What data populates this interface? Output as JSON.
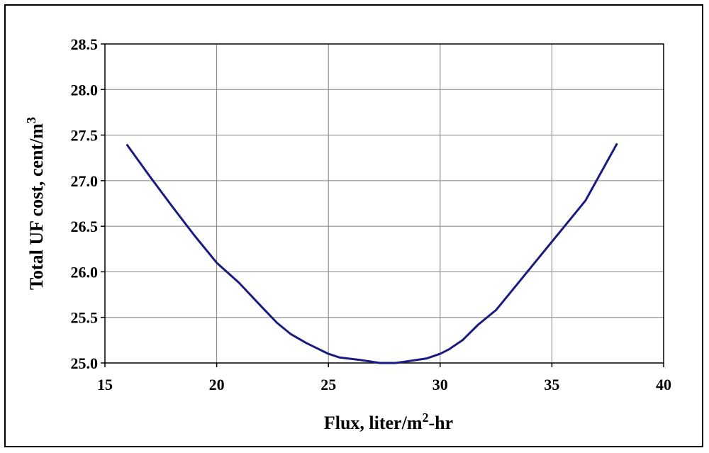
{
  "chart_data": {
    "type": "line",
    "title": "",
    "xlabel": "Flux, liter/m",
    "xlabel_sup": "2",
    "xlabel_suffix": "-hr",
    "ylabel": "Total UF cost, cent/m",
    "ylabel_sup": "3",
    "xlim": [
      15,
      40
    ],
    "ylim": [
      25.0,
      28.5
    ],
    "xticks": [
      "15",
      "20",
      "25",
      "30",
      "35",
      "40"
    ],
    "yticks": [
      "25.0",
      "25.5",
      "26.0",
      "26.5",
      "27.0",
      "27.5",
      "28.0",
      "28.5"
    ],
    "grid": true,
    "line_color": "#1a1a80",
    "series": [
      {
        "x": [
          16,
          17,
          18,
          19,
          20,
          21,
          22,
          22.7,
          23.3,
          24,
          25,
          25.5,
          26.5,
          27.3,
          28,
          28.6,
          29.4,
          30,
          30.4,
          31,
          31.7,
          32.5,
          33.5,
          34.5,
          35.5,
          36.5,
          37.9
        ],
        "y": [
          27.39,
          27.05,
          26.72,
          26.4,
          26.1,
          25.88,
          25.62,
          25.44,
          25.32,
          25.22,
          25.1,
          25.06,
          25.03,
          25.0,
          25.0,
          25.02,
          25.05,
          25.1,
          25.15,
          25.25,
          25.42,
          25.58,
          25.88,
          26.18,
          26.48,
          26.78,
          27.4
        ]
      }
    ]
  }
}
